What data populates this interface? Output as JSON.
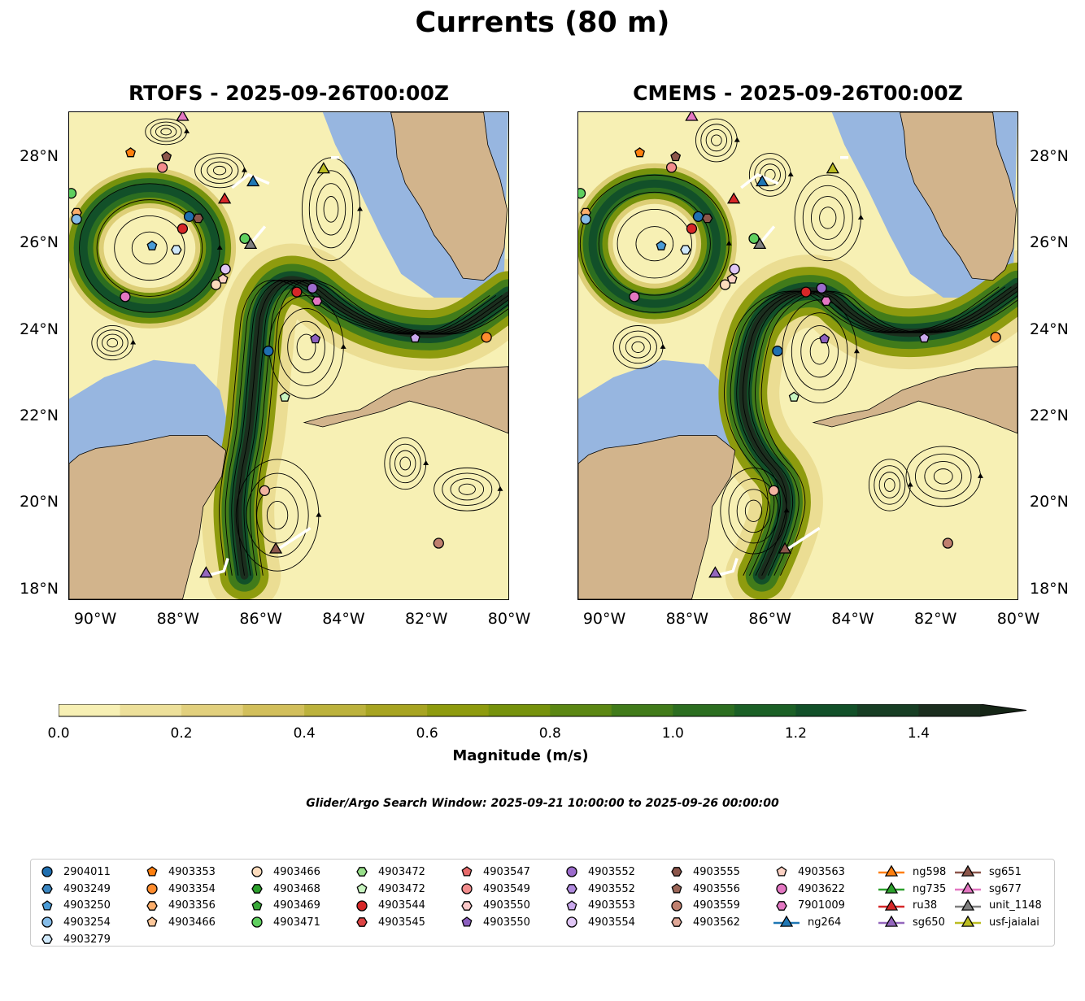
{
  "figure": {
    "title": "Currents (80 m)",
    "search_window": "Glider/Argo Search Window: 2025-09-21 10:00:00 to 2025-09-26 00:00:00"
  },
  "chart_data": {
    "type": "map",
    "extent": {
      "lon": [
        -90.65,
        -80.0
      ],
      "lat": [
        17.75,
        29.05
      ]
    },
    "lon_ticks": [
      {
        "v": -90,
        "label": "90°W"
      },
      {
        "v": -88,
        "label": "88°W"
      },
      {
        "v": -86,
        "label": "86°W"
      },
      {
        "v": -84,
        "label": "84°W"
      },
      {
        "v": -82,
        "label": "82°W"
      },
      {
        "v": -80,
        "label": "80°W"
      }
    ],
    "lat_ticks": [
      {
        "v": 18,
        "label": "18°N"
      },
      {
        "v": 20,
        "label": "20°N"
      },
      {
        "v": 22,
        "label": "22°N"
      },
      {
        "v": 24,
        "label": "24°N"
      },
      {
        "v": 26,
        "label": "26°N"
      },
      {
        "v": 28,
        "label": "28°N"
      }
    ],
    "panels": [
      {
        "title": "RTOFS - 2025-09-26T00:00Z",
        "loop_current": [
          [
            -86.4,
            18.3
          ],
          [
            -86.6,
            19.5
          ],
          [
            -86.5,
            20.6
          ],
          [
            -86.3,
            21.5
          ],
          [
            -86.2,
            22.5
          ],
          [
            -86.1,
            23.6
          ],
          [
            -86.0,
            24.6
          ],
          [
            -85.5,
            25.2
          ],
          [
            -84.8,
            25.1
          ],
          [
            -84.2,
            24.6
          ],
          [
            -83.5,
            24.2
          ],
          [
            -82.5,
            23.9
          ],
          [
            -81.3,
            23.9
          ],
          [
            -80.0,
            24.8
          ]
        ],
        "eddies": [
          [
            -88.7,
            25.9,
            1.7,
            1.5
          ],
          [
            -84.9,
            23.6,
            0.9,
            1.2
          ],
          [
            -85.6,
            19.7,
            1.0,
            1.3
          ],
          [
            -89.6,
            23.7,
            0.5,
            0.4
          ],
          [
            -84.3,
            26.8,
            0.7,
            1.2
          ],
          [
            -82.5,
            20.9,
            0.5,
            0.6
          ],
          [
            -81.0,
            20.3,
            0.8,
            0.5
          ],
          [
            -88.3,
            28.6,
            0.5,
            0.3
          ],
          [
            -87.0,
            27.7,
            0.6,
            0.4
          ]
        ],
        "main_eddy": [
          -88.7,
          25.9,
          1.6,
          1.4
        ]
      },
      {
        "title": "CMEMS - 2025-09-26T00:00Z",
        "loop_current": [
          [
            -86.2,
            18.3
          ],
          [
            -85.6,
            19.5
          ],
          [
            -85.6,
            20.5
          ],
          [
            -86.3,
            21.2
          ],
          [
            -86.7,
            22.2
          ],
          [
            -86.6,
            23.3
          ],
          [
            -86.3,
            24.3
          ],
          [
            -85.5,
            24.9
          ],
          [
            -84.6,
            24.9
          ],
          [
            -84.1,
            24.4
          ],
          [
            -83.4,
            24.0
          ],
          [
            -82.5,
            23.9
          ],
          [
            -81.3,
            24.1
          ],
          [
            -80.0,
            25.0
          ]
        ],
        "eddies": [
          [
            -88.8,
            26.0,
            1.8,
            1.6
          ],
          [
            -84.8,
            23.5,
            0.9,
            1.2
          ],
          [
            -86.4,
            19.8,
            0.8,
            1.0
          ],
          [
            -89.2,
            23.6,
            0.6,
            0.5
          ],
          [
            -84.6,
            26.6,
            0.8,
            1.0
          ],
          [
            -81.8,
            20.6,
            0.9,
            0.7
          ],
          [
            -83.1,
            20.4,
            0.5,
            0.6
          ],
          [
            -87.3,
            28.4,
            0.5,
            0.5
          ],
          [
            -86.0,
            27.6,
            0.5,
            0.5
          ]
        ],
        "main_eddy": [
          -88.8,
          26.0,
          1.5,
          1.4
        ]
      }
    ],
    "markers": [
      {
        "id": "sg677",
        "shape": "tri",
        "color": "#e377c2",
        "lon": -87.9,
        "lat": 28.94
      },
      {
        "id": "4903353",
        "shape": "pent",
        "color": "#ff7f0e",
        "lon": -89.16,
        "lat": 28.11
      },
      {
        "id": "4903556",
        "shape": "pent",
        "color": "#8c564b",
        "lon": -88.29,
        "lat": 28.02
      },
      {
        "id": "4903549",
        "shape": "circ",
        "color": "#f28c8c",
        "lon": -88.39,
        "lat": 27.77
      },
      {
        "id": "ng264",
        "shape": "tri",
        "color": "#1f77b4",
        "lon": -86.19,
        "lat": 27.42
      },
      {
        "id": "usf-jaialai",
        "shape": "tri",
        "color": "#bcbd22",
        "lon": -84.48,
        "lat": 27.72
      },
      {
        "id": "ru38",
        "shape": "tri",
        "color": "#d62728",
        "lon": -86.88,
        "lat": 27.02
      },
      {
        "id": "4903471",
        "shape": "circ",
        "color": "#5fcf5f",
        "lon": -90.6,
        "lat": 27.17
      },
      {
        "id": "4903356",
        "shape": "hex",
        "color": "#fdae6b",
        "lon": -90.47,
        "lat": 26.72
      },
      {
        "id": "4903254",
        "shape": "circ",
        "color": "#85bce8",
        "lon": -90.47,
        "lat": 26.57
      },
      {
        "id": "2904011",
        "shape": "circ",
        "color": "#1f6fb0",
        "lon": -87.74,
        "lat": 26.63
      },
      {
        "id": "4903555",
        "shape": "hex",
        "color": "#8c564b",
        "lon": -87.52,
        "lat": 26.59
      },
      {
        "id": "4903544",
        "shape": "circ",
        "color": "#d62728",
        "lon": -87.9,
        "lat": 26.35
      },
      {
        "id": "4903471",
        "shape": "circ",
        "color": "#5fcf5f",
        "lon": -86.39,
        "lat": 26.12
      },
      {
        "id": "unit_1148",
        "shape": "tri",
        "color": "#7f7f7f",
        "lon": -86.25,
        "lat": 25.97
      },
      {
        "id": "4903250",
        "shape": "pent",
        "color": "#4a9bd6",
        "lon": -88.64,
        "lat": 25.95
      },
      {
        "id": "4903279",
        "shape": "hex",
        "color": "#cfe8fa",
        "lon": -88.05,
        "lat": 25.86
      },
      {
        "id": "4903554",
        "shape": "circ",
        "color": "#e0c6f5",
        "lon": -86.86,
        "lat": 25.41
      },
      {
        "id": "4903563",
        "shape": "pent",
        "color": "#fcd2c4",
        "lon": -86.92,
        "lat": 25.18
      },
      {
        "id": "4903466",
        "shape": "circ",
        "color": "#fddcbd",
        "lon": -87.09,
        "lat": 25.05
      },
      {
        "id": "4903622",
        "shape": "circ",
        "color": "#e377c2",
        "lon": -89.29,
        "lat": 24.77
      },
      {
        "id": "4903544",
        "shape": "circ",
        "color": "#d62728",
        "lon": -85.13,
        "lat": 24.88
      },
      {
        "id": "4903552",
        "shape": "circ",
        "color": "#9c6ccc",
        "lon": -84.75,
        "lat": 24.97
      },
      {
        "id": "7901009",
        "shape": "hex",
        "color": "#e377c2",
        "lon": -84.64,
        "lat": 24.67
      },
      {
        "id": "4903550",
        "shape": "pent",
        "color": "#8c5fbf",
        "lon": -84.68,
        "lat": 23.79
      },
      {
        "id": "4903553",
        "shape": "pent",
        "color": "#c9a8ec",
        "lon": -82.26,
        "lat": 23.81
      },
      {
        "id": "4903354",
        "shape": "circ",
        "color": "#ff8c2e",
        "lon": -80.53,
        "lat": 23.83
      },
      {
        "id": "2904011",
        "shape": "circ",
        "color": "#1f6fb0",
        "lon": -85.82,
        "lat": 23.51
      },
      {
        "id": "4903472",
        "shape": "pent",
        "color": "#c8f5c0",
        "lon": -85.42,
        "lat": 22.44
      },
      {
        "id": "4903562",
        "shape": "circ",
        "color": "#f2b3a0",
        "lon": -85.91,
        "lat": 20.27
      },
      {
        "id": "4903559",
        "shape": "circ",
        "color": "#c0806f",
        "lon": -81.69,
        "lat": 19.05
      },
      {
        "id": "sg651",
        "shape": "tri",
        "color": "#8c564b",
        "lon": -85.64,
        "lat": 18.9
      },
      {
        "id": "sg650",
        "shape": "tri",
        "color": "#9467bd",
        "lon": -87.33,
        "lat": 18.34
      }
    ],
    "tracks": [
      [
        [
          -86.7,
          27.3
        ],
        [
          -86.3,
          27.6
        ],
        [
          -85.8,
          27.4
        ]
      ],
      [
        [
          -85.6,
          18.9
        ],
        [
          -84.8,
          19.4
        ]
      ],
      [
        [
          -87.3,
          18.3
        ],
        [
          -86.9,
          18.4
        ],
        [
          -86.8,
          18.7
        ]
      ],
      [
        [
          -86.25,
          26.0
        ],
        [
          -85.9,
          26.4
        ]
      ],
      [
        [
          -84.3,
          28.0
        ],
        [
          -84.1,
          28.0
        ]
      ]
    ],
    "colorbar": {
      "label": "Magnitude (m/s)",
      "min": 0,
      "max": 1.5,
      "extend": "max",
      "colors": [
        "#f7f0b4",
        "#ede09a",
        "#e2d07d",
        "#d2bf5b",
        "#bcb23c",
        "#a7a421",
        "#8e9b0e",
        "#76920c",
        "#5b8713",
        "#417b1a",
        "#2c6e20",
        "#1b6026",
        "#125029",
        "#173e24",
        "#1b2e1e"
      ],
      "extend_color": "#152516",
      "ticks": [
        "0.0",
        "0.2",
        "0.4",
        "0.6",
        "0.8",
        "1.0",
        "1.2",
        "1.4"
      ]
    },
    "land": {
      "florida": [
        [
          -82.85,
          29.05
        ],
        [
          -82.75,
          28.6
        ],
        [
          -82.7,
          28.0
        ],
        [
          -82.5,
          27.4
        ],
        [
          -82.1,
          26.8
        ],
        [
          -81.8,
          26.2
        ],
        [
          -81.4,
          25.7
        ],
        [
          -81.1,
          25.2
        ],
        [
          -80.6,
          25.15
        ],
        [
          -80.3,
          25.4
        ],
        [
          -80.1,
          25.9
        ],
        [
          -80.03,
          26.8
        ],
        [
          -80.2,
          27.5
        ],
        [
          -80.5,
          28.3
        ],
        [
          -80.6,
          29.05
        ]
      ],
      "yucatan": [
        [
          -90.65,
          20.9
        ],
        [
          -90.4,
          21.1
        ],
        [
          -90.0,
          21.25
        ],
        [
          -89.2,
          21.35
        ],
        [
          -88.2,
          21.55
        ],
        [
          -87.3,
          21.55
        ],
        [
          -86.85,
          21.2
        ],
        [
          -86.95,
          20.6
        ],
        [
          -87.4,
          19.9
        ],
        [
          -87.5,
          19.2
        ],
        [
          -87.7,
          18.5
        ],
        [
          -87.9,
          17.75
        ],
        [
          -90.65,
          17.75
        ]
      ],
      "cuba": [
        [
          -84.95,
          21.85
        ],
        [
          -84.4,
          22.0
        ],
        [
          -83.6,
          22.15
        ],
        [
          -82.8,
          22.6
        ],
        [
          -81.9,
          22.9
        ],
        [
          -81.0,
          23.1
        ],
        [
          -80.0,
          23.15
        ],
        [
          -80.0,
          21.6
        ],
        [
          -80.8,
          21.9
        ],
        [
          -81.6,
          22.15
        ],
        [
          -82.4,
          22.35
        ],
        [
          -83.1,
          22.1
        ],
        [
          -83.9,
          21.9
        ],
        [
          -84.5,
          21.75
        ]
      ]
    },
    "shelf": {
      "campeche": [
        [
          -90.65,
          22.4
        ],
        [
          -89.8,
          22.9
        ],
        [
          -88.6,
          23.3
        ],
        [
          -87.6,
          23.2
        ],
        [
          -87.0,
          22.6
        ],
        [
          -86.8,
          21.8
        ],
        [
          -86.85,
          21.2
        ],
        [
          -87.3,
          21.55
        ],
        [
          -90.65,
          20.9
        ]
      ],
      "wfs": [
        [
          -84.5,
          29.05
        ],
        [
          -84.2,
          28.3
        ],
        [
          -83.6,
          27.2
        ],
        [
          -83.1,
          26.2
        ],
        [
          -82.6,
          25.3
        ],
        [
          -81.8,
          24.75
        ],
        [
          -80.8,
          24.75
        ],
        [
          -80.1,
          25.3
        ],
        [
          -80.0,
          29.05
        ]
      ]
    },
    "legend": {
      "columns": [
        [
          {
            "label": "2904011",
            "shape": "circ",
            "color": "#1f6fb0"
          },
          {
            "label": "4903249",
            "shape": "hex",
            "color": "#3b87c2"
          },
          {
            "label": "4903250",
            "shape": "pent",
            "color": "#4a9bd6"
          },
          {
            "label": "4903254",
            "shape": "circ",
            "color": "#85bce8"
          },
          {
            "label": "4903279",
            "shape": "hex",
            "color": "#cfe8fa"
          }
        ],
        [
          {
            "label": "4903353",
            "shape": "pent",
            "color": "#ff7f0e"
          },
          {
            "label": "4903354",
            "shape": "circ",
            "color": "#ff8c2e"
          },
          {
            "label": "4903356",
            "shape": "hex",
            "color": "#fdae6b"
          },
          {
            "label": "4903466",
            "shape": "pent",
            "color": "#fdc79a"
          }
        ],
        [
          {
            "label": "4903466",
            "shape": "circ",
            "color": "#fddcbd"
          },
          {
            "label": "4903468",
            "shape": "hex",
            "color": "#2ca02c"
          },
          {
            "label": "4903469",
            "shape": "pent",
            "color": "#3aaa3a"
          },
          {
            "label": "4903471",
            "shape": "circ",
            "color": "#5fcf5f"
          }
        ],
        [
          {
            "label": "4903472",
            "shape": "hex",
            "color": "#98df8a"
          },
          {
            "label": "4903472",
            "shape": "pent",
            "color": "#c8f5c0"
          },
          {
            "label": "4903544",
            "shape": "circ",
            "color": "#d62728"
          },
          {
            "label": "4903545",
            "shape": "hex",
            "color": "#dd4444"
          }
        ],
        [
          {
            "label": "4903547",
            "shape": "pent",
            "color": "#e86b6b"
          },
          {
            "label": "4903549",
            "shape": "circ",
            "color": "#f28c8c"
          },
          {
            "label": "4903550",
            "shape": "hex",
            "color": "#fbc8c8"
          },
          {
            "label": "4903550",
            "shape": "pent",
            "color": "#8c5fbf"
          }
        ],
        [
          {
            "label": "4903552",
            "shape": "circ",
            "color": "#9c6ccc"
          },
          {
            "label": "4903552",
            "shape": "hex",
            "color": "#b08ade"
          },
          {
            "label": "4903553",
            "shape": "pent",
            "color": "#c9a8ec"
          },
          {
            "label": "4903554",
            "shape": "circ",
            "color": "#e0c6f5"
          }
        ],
        [
          {
            "label": "4903555",
            "shape": "hex",
            "color": "#8c564b"
          },
          {
            "label": "4903556",
            "shape": "pent",
            "color": "#9c6658"
          },
          {
            "label": "4903559",
            "shape": "circ",
            "color": "#c0806f"
          },
          {
            "label": "4903562",
            "shape": "hex",
            "color": "#e0a898"
          }
        ],
        [
          {
            "label": "4903563",
            "shape": "pent",
            "color": "#fcd2c4"
          },
          {
            "label": "4903622",
            "shape": "circ",
            "color": "#e377c2"
          },
          {
            "label": "7901009",
            "shape": "hex",
            "color": "#e377c2"
          },
          {
            "label": "ng264",
            "shape": "tri",
            "color": "#1f77b4"
          }
        ],
        [
          {
            "label": "ng598",
            "shape": "tri",
            "color": "#ff7f0e"
          },
          {
            "label": "ng735",
            "shape": "tri",
            "color": "#2ca02c"
          },
          {
            "label": "ru38",
            "shape": "tri",
            "color": "#d62728"
          },
          {
            "label": "sg650",
            "shape": "tri",
            "color": "#9467bd"
          }
        ],
        [
          {
            "label": "sg651",
            "shape": "tri",
            "color": "#8c564b"
          },
          {
            "label": "sg677",
            "shape": "tri",
            "color": "#e377c2"
          },
          {
            "label": "unit_1148",
            "shape": "tri",
            "color": "#7f7f7f"
          },
          {
            "label": "usf-jaialai",
            "shape": "tri",
            "color": "#bcbd22"
          }
        ]
      ]
    }
  }
}
